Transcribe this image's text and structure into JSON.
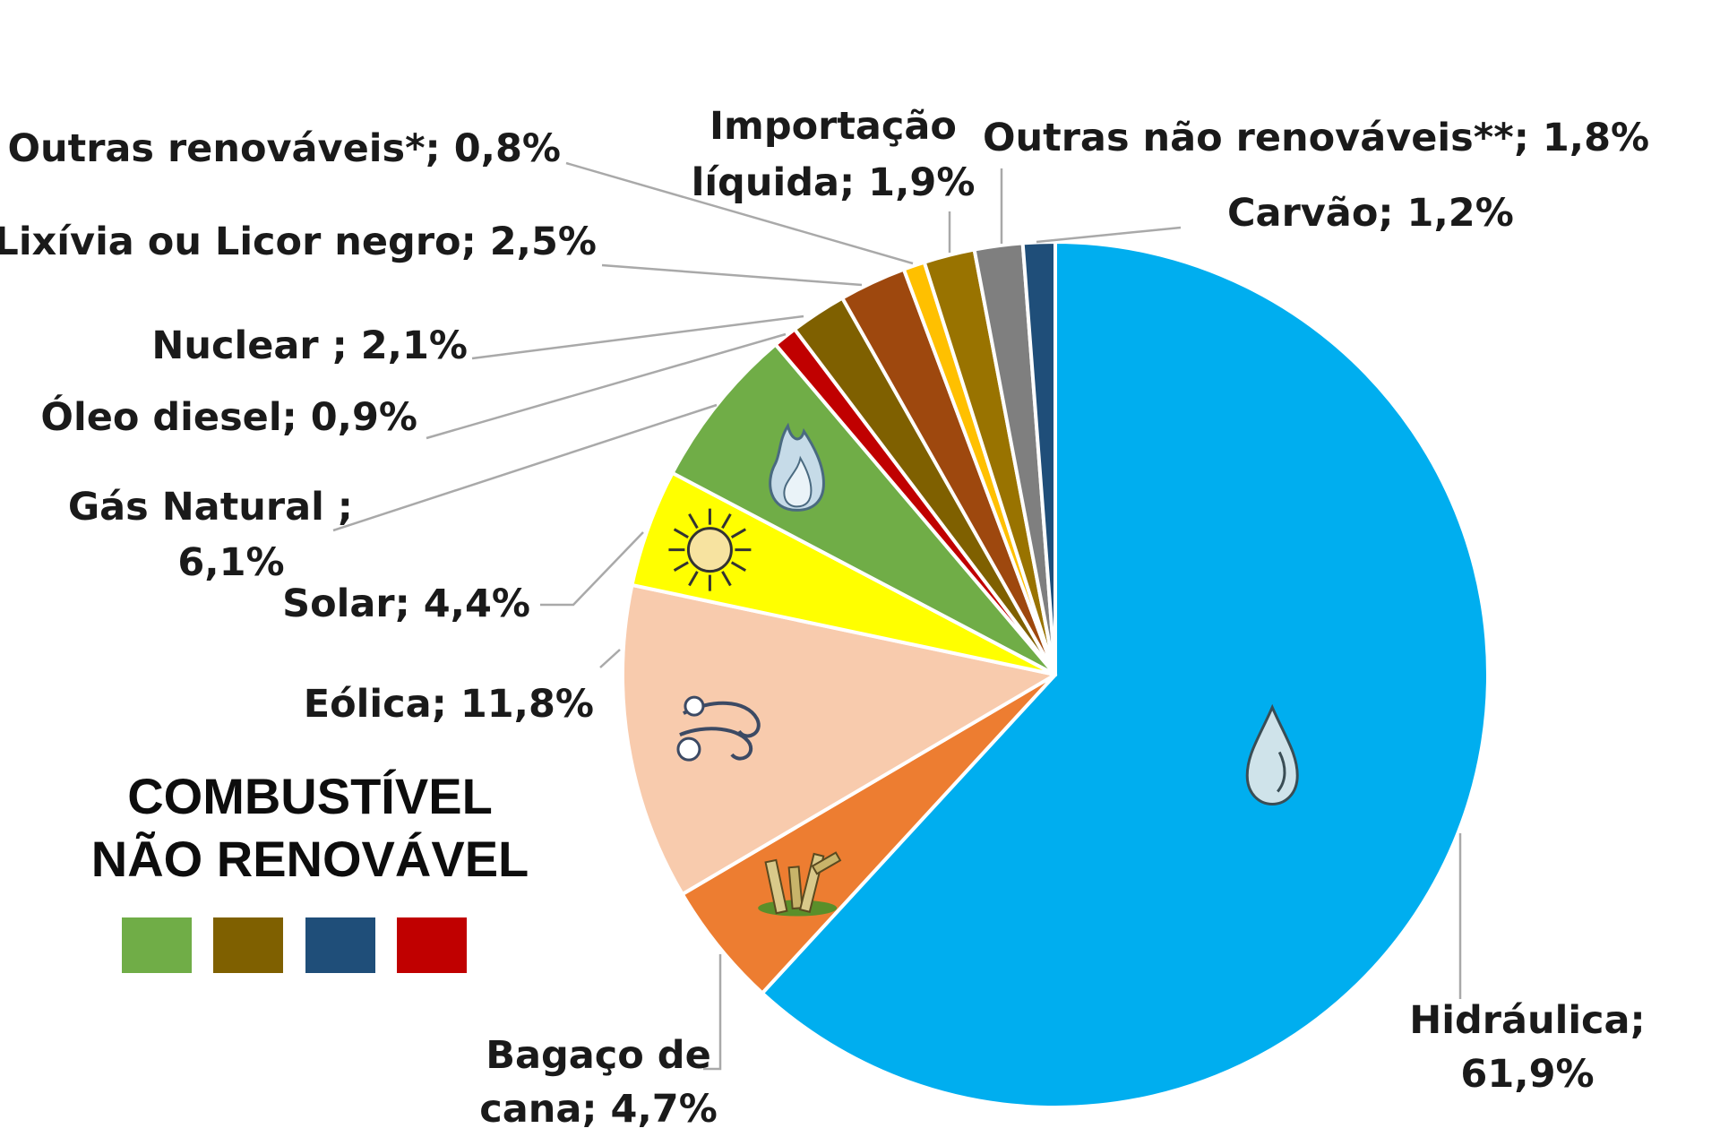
{
  "chart_data": {
    "type": "pie",
    "slices": [
      {
        "label": "Hidráulica;",
        "label_line2": "61,9%",
        "value": 61.9,
        "color": "#00aeef",
        "icon": "water-drop-icon"
      },
      {
        "label": "Bagaço de",
        "label_line2": "cana; 4,7%",
        "value": 4.7,
        "color": "#ed7d31",
        "icon": "sugarcane-icon"
      },
      {
        "label": "Eólica; 11,8%",
        "value": 11.8,
        "color": "#f8cbad",
        "icon": "wind-icon"
      },
      {
        "label": "Solar; 4,4%",
        "value": 4.4,
        "color": "#ffff00",
        "icon": "sun-icon"
      },
      {
        "label": "Gás Natural ;",
        "label_line2": "6,1%",
        "value": 6.1,
        "color": "#70ad47",
        "icon": "flame-icon"
      },
      {
        "label": "Óleo diesel; 0,9%",
        "value": 0.9,
        "color": "#c00000"
      },
      {
        "label": "Nuclear ; 2,1%",
        "value": 2.1,
        "color": "#7f6000"
      },
      {
        "label": "Lixívia ou Licor negro; 2,5%",
        "value": 2.5,
        "color": "#9e480e"
      },
      {
        "label": "Outras renováveis*; 0,8%",
        "value": 0.8,
        "color": "#ffc000"
      },
      {
        "label": "Importação",
        "label_line2": "líquida; 1,9%",
        "value": 1.9,
        "color": "#997300"
      },
      {
        "label": "Outras não renováveis**; 1,8%",
        "value": 1.8,
        "color": "#7f7f7f"
      },
      {
        "label": "Carvão; 1,2%",
        "value": 1.2,
        "color": "#1f4e79"
      }
    ],
    "legend": {
      "title_line1": "COMBUSTÍVEL",
      "title_line2": "NÃO RENOVÁVEL",
      "swatches": [
        "#70ad47",
        "#7f6000",
        "#1f4e79",
        "#c00000"
      ]
    }
  }
}
